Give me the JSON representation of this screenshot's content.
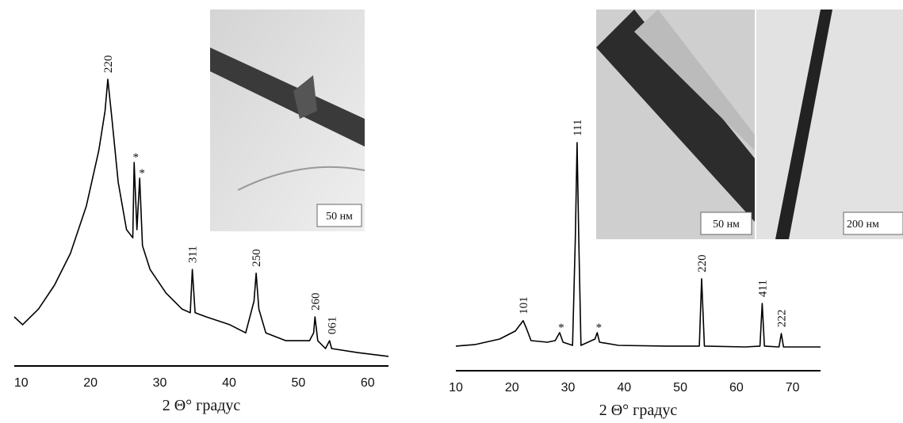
{
  "chart_data": [
    {
      "type": "line",
      "xlabel": "2 Θ° градус",
      "x": [
        9,
        10.2,
        12.5,
        14.8,
        17.1,
        19.4,
        21.2,
        22.1,
        22.5,
        23.1,
        24.0,
        25.2,
        26.1,
        26.3,
        26.7,
        27.1,
        27.5,
        28.6,
        30.9,
        33.2,
        34.4,
        34.7,
        35.1,
        36.7,
        40.1,
        42.4,
        43.6,
        43.9,
        44.3,
        45.3,
        48.2,
        51.6,
        52.2,
        52.4,
        52.8,
        53.9,
        54.5,
        54.8,
        58.5,
        63
      ],
      "series": [
        {
          "color": "#000000",
          "values": [
            16.9,
            14.2,
            19.6,
            27.8,
            38.7,
            55,
            74.1,
            87.7,
            98.6,
            85,
            63.2,
            46.9,
            44.1,
            70,
            46.9,
            64.6,
            41.4,
            33.2,
            25.1,
            19.6,
            18.3,
            33.2,
            18.3,
            16.9,
            14.2,
            11.4,
            22.3,
            31.9,
            19.6,
            11.4,
            8.7,
            8.7,
            11.4,
            16.9,
            8.7,
            6,
            8.7,
            6,
            4.6,
            3.3
          ]
        }
      ],
      "xlim": [
        9,
        63
      ],
      "xticks": [
        10,
        20,
        30,
        40,
        50,
        60
      ],
      "ylim": [
        0,
        100
      ],
      "annotations": [
        {
          "text": "220",
          "x": 22.5,
          "y": 98.6
        },
        {
          "text": "*",
          "x": 26.3,
          "y": 70
        },
        {
          "text": "*",
          "x": 27.2,
          "y": 64.6
        },
        {
          "text": "311",
          "x": 34.7,
          "y": 33.2
        },
        {
          "text": "250",
          "x": 43.9,
          "y": 31.9
        },
        {
          "text": "260",
          "x": 52.4,
          "y": 16.9
        },
        {
          "text": "061",
          "x": 54.8,
          "y": 8.7
        }
      ],
      "insets": [
        "50 нм"
      ]
    },
    {
      "type": "line",
      "xlabel": "2 Θ° градус",
      "x": [
        10,
        13.5,
        17.8,
        20.6,
        22.0,
        22.6,
        23.4,
        26.3,
        27.7,
        28.5,
        29.1,
        30.8,
        31.3,
        31.6,
        31.9,
        32.3,
        34.8,
        35.2,
        35.6,
        39.0,
        47.5,
        53.4,
        53.8,
        54.3,
        61.6,
        64.2,
        64.6,
        65.0,
        67.6,
        68.0,
        68.4,
        75
      ],
      "series": [
        {
          "color": "#000000",
          "values": [
            10.8,
            11.5,
            13.9,
            17.4,
            21.9,
            18.4,
            13.2,
            12.5,
            13.2,
            16.7,
            12.5,
            11.1,
            58.3,
            100,
            58.3,
            11.1,
            13.9,
            16.7,
            12.5,
            11.1,
            10.8,
            10.8,
            40.3,
            10.8,
            10.4,
            10.8,
            29.5,
            10.8,
            10.4,
            16.3,
            10.4,
            10.4
          ]
        }
      ],
      "xlim": [
        10,
        75
      ],
      "xticks": [
        10,
        20,
        30,
        40,
        50,
        60,
        70
      ],
      "ylim": [
        0,
        100
      ],
      "annotations": [
        {
          "text": "101",
          "x": 22.0,
          "y": 21.9
        },
        {
          "text": "*",
          "x": 28.5,
          "y": 16.7
        },
        {
          "text": "111",
          "x": 31.6,
          "y": 100
        },
        {
          "text": "*",
          "x": 35.2,
          "y": 16.7
        },
        {
          "text": "220",
          "x": 53.8,
          "y": 40.3
        },
        {
          "text": "411",
          "x": 64.6,
          "y": 29.5
        },
        {
          "text": "222",
          "x": 68.0,
          "y": 16.3
        }
      ],
      "insets": [
        "50 нм",
        "200 нм"
      ]
    }
  ]
}
